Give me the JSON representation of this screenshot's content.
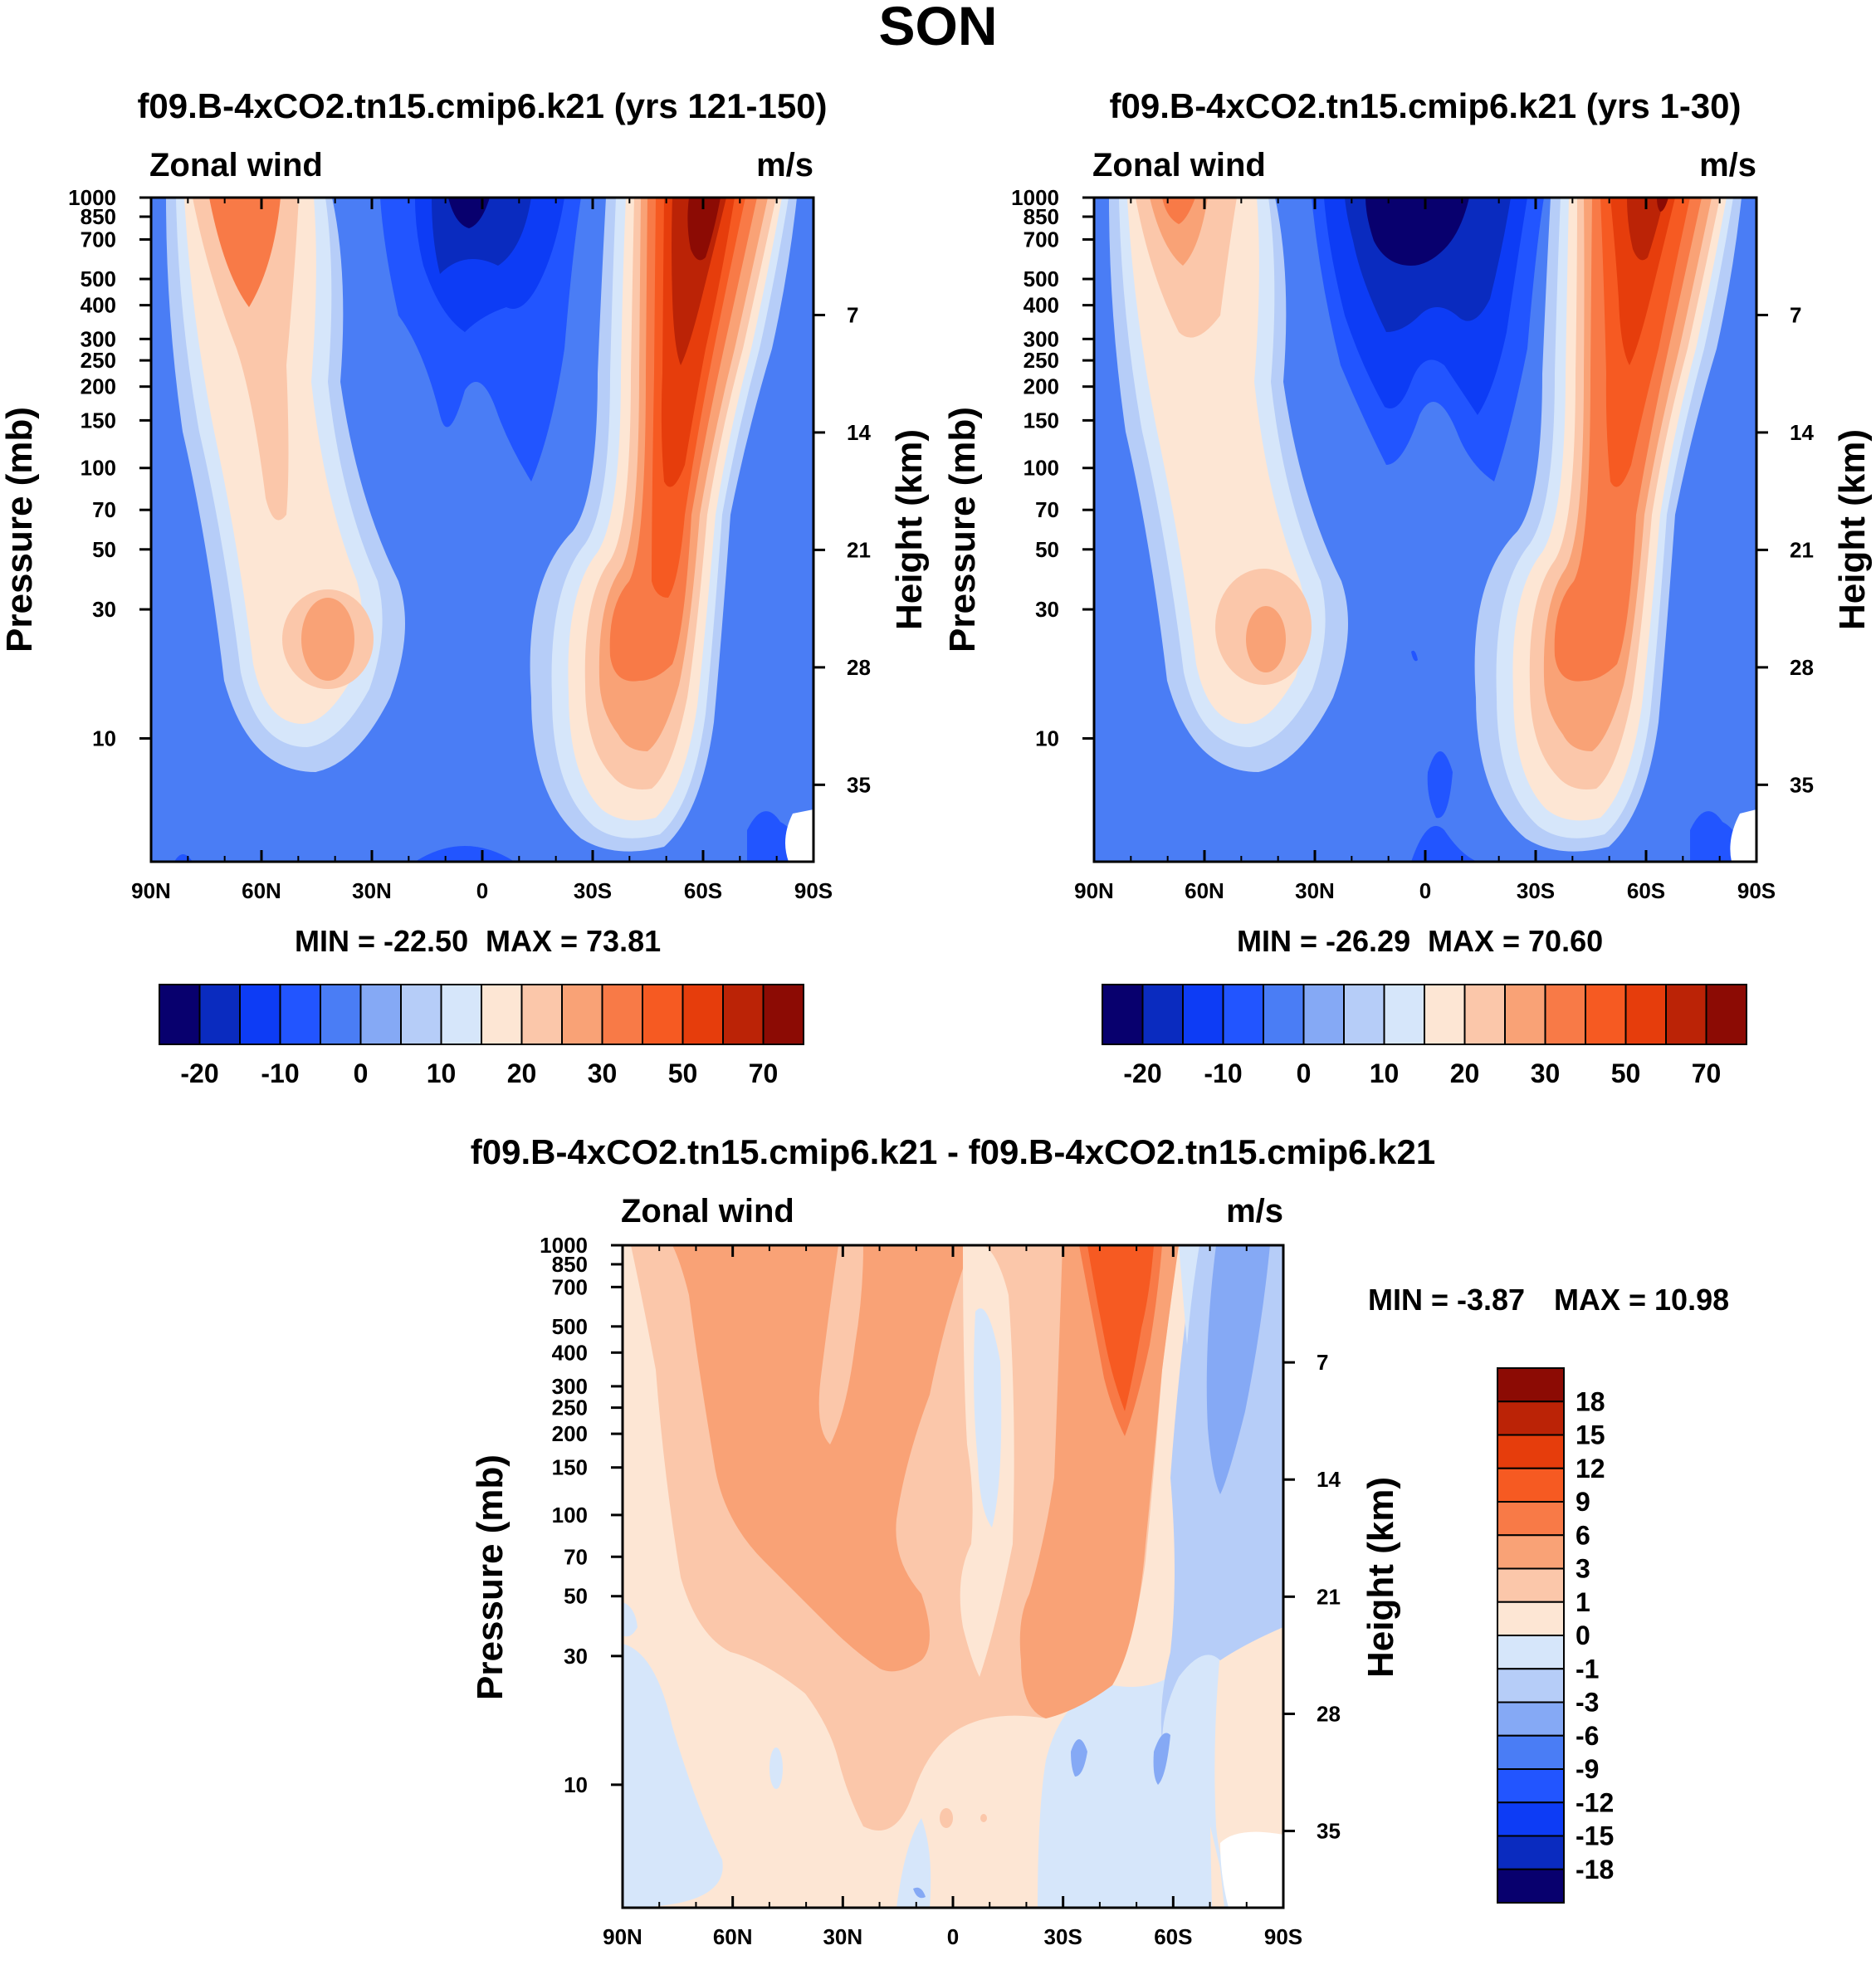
{
  "figure": {
    "title": "SON"
  },
  "chart_data": [
    {
      "type": "heatmap",
      "title": "f09.B-4xCO2.tn15.cmip6.k21 (yrs 121-150)",
      "left_label": "Zonal wind",
      "units": "m/s",
      "ylabel": "Pressure (mb)",
      "ylabel_right": "Height (km)",
      "x_ticks": [
        "90N",
        "60N",
        "30N",
        "0",
        "30S",
        "60S",
        "90S"
      ],
      "y_ticks": [
        "10",
        "30",
        "50",
        "70",
        "100",
        "150",
        "200",
        "250",
        "300",
        "400",
        "500",
        "700",
        "850",
        "1000"
      ],
      "y_ticks_right": [
        "35",
        "28",
        "21",
        "14",
        "7"
      ],
      "min_label": "MIN = -22.50",
      "max_label": "MAX =  73.81",
      "min_value": -22.5,
      "max_value": 73.81,
      "colorbar_labels": [
        "-20",
        "-10",
        "0",
        "10",
        "20",
        "30",
        "50",
        "70"
      ],
      "colorbar_colors": [
        "#08006e",
        "#0a2bbf",
        "#0d3cf5",
        "#2255ff",
        "#4a7df5",
        "#85a9f5",
        "#b6cdf8",
        "#d6e6fa",
        "#fde6d4",
        "#fbc7aa",
        "#f9a276",
        "#f87a47",
        "#f65a22",
        "#e63d0c",
        "#bb2306",
        "#8c0b04"
      ]
    },
    {
      "type": "heatmap",
      "title": "f09.B-4xCO2.tn15.cmip6.k21 (yrs 1-30)",
      "left_label": "Zonal wind",
      "units": "m/s",
      "ylabel": "Pressure (mb)",
      "ylabel_right": "Height (km)",
      "x_ticks": [
        "90N",
        "60N",
        "30N",
        "0",
        "30S",
        "60S",
        "90S"
      ],
      "y_ticks": [
        "10",
        "30",
        "50",
        "70",
        "100",
        "150",
        "200",
        "250",
        "300",
        "400",
        "500",
        "700",
        "850",
        "1000"
      ],
      "y_ticks_right": [
        "35",
        "28",
        "21",
        "14",
        "7"
      ],
      "min_label": "MIN = -26.29",
      "max_label": "MAX =  70.60",
      "min_value": -26.29,
      "max_value": 70.6,
      "colorbar_labels": [
        "-20",
        "-10",
        "0",
        "10",
        "20",
        "30",
        "50",
        "70"
      ],
      "colorbar_colors": [
        "#08006e",
        "#0a2bbf",
        "#0d3cf5",
        "#2255ff",
        "#4a7df5",
        "#85a9f5",
        "#b6cdf8",
        "#d6e6fa",
        "#fde6d4",
        "#fbc7aa",
        "#f9a276",
        "#f87a47",
        "#f65a22",
        "#e63d0c",
        "#bb2306",
        "#8c0b04"
      ]
    },
    {
      "type": "heatmap",
      "title": "f09.B-4xCO2.tn15.cmip6.k21 - f09.B-4xCO2.tn15.cmip6.k21",
      "left_label": "Zonal wind",
      "units": "m/s",
      "ylabel": "Pressure (mb)",
      "ylabel_right": "Height (km)",
      "x_ticks": [
        "90N",
        "60N",
        "30N",
        "0",
        "30S",
        "60S",
        "90S"
      ],
      "y_ticks": [
        "10",
        "30",
        "50",
        "70",
        "100",
        "150",
        "200",
        "250",
        "300",
        "400",
        "500",
        "700",
        "850",
        "1000"
      ],
      "y_ticks_right": [
        "35",
        "28",
        "21",
        "14",
        "7"
      ],
      "min_label": "MIN =  -3.87",
      "max_label": "MAX =  10.98",
      "min_value": -3.87,
      "max_value": 10.98,
      "colorbar_labels": [
        "18",
        "15",
        "12",
        "9",
        "6",
        "3",
        "1",
        "0",
        "-1",
        "-3",
        "-6",
        "-9",
        "-12",
        "-15",
        "-18"
      ],
      "colorbar_colors": [
        "#8c0b04",
        "#bb2306",
        "#e63d0c",
        "#f65a22",
        "#f87a47",
        "#f9a276",
        "#fbc7aa",
        "#fde6d4",
        "#d6e6fa",
        "#b6cdf8",
        "#85a9f5",
        "#4a7df5",
        "#2255ff",
        "#0d3cf5",
        "#0a2bbf",
        "#08006e"
      ]
    }
  ]
}
